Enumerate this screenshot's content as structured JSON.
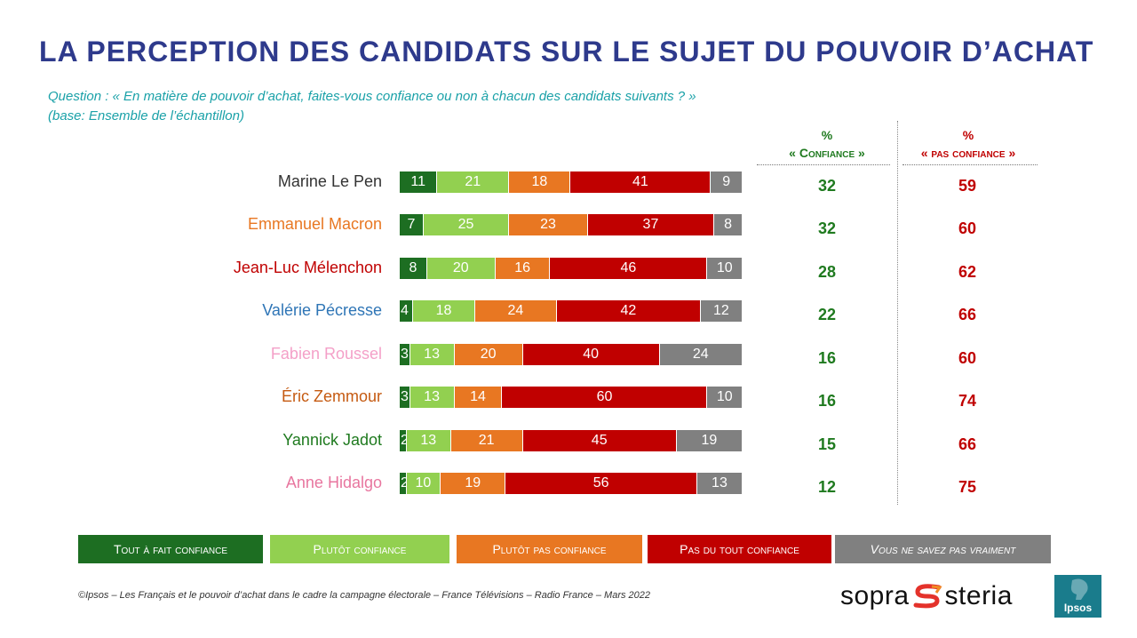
{
  "title": "LA PERCEPTION DES CANDIDATS SUR LE SUJET DU POUVOIR D’ACHAT",
  "question_line1": "Question : « En matière de pouvoir d’achat, faites-vous confiance ou non à chacun des candidats suivants ? »",
  "question_line2": "(base: Ensemble de l’échantillon)",
  "columns": {
    "confiance_pct": "%",
    "confiance_label": "« Confiance »",
    "pas_confiance_pct": "%",
    "pas_confiance_label": "« pas confiance »"
  },
  "colors": {
    "tout_a_fait": "#1d6e22",
    "plutot": "#92d050",
    "plutot_pas": "#e87722",
    "pas_du_tout": "#c00000",
    "ne_sait_pas": "#808080",
    "title": "#2e3a8c",
    "question": "#1aa1a8"
  },
  "chart_data": {
    "type": "bar",
    "orientation": "horizontal",
    "stacked": true,
    "unit": "%",
    "categories": [
      "Marine Le Pen",
      "Emmanuel Macron",
      "Jean-Luc Mélenchon",
      "Valérie Pécresse",
      "Fabien Roussel",
      "Éric Zemmour",
      "Yannick Jadot",
      "Anne Hidalgo"
    ],
    "category_colors": [
      "#333333",
      "#e87722",
      "#c00000",
      "#2e75b6",
      "#f4a0c8",
      "#c55a11",
      "#1f7a1f",
      "#e8769f"
    ],
    "series": [
      {
        "name": "Tout à fait confiance",
        "color": "#1d6e22",
        "values": [
          11,
          7,
          8,
          4,
          3,
          3,
          2,
          2
        ]
      },
      {
        "name": "Plutôt confiance",
        "color": "#92d050",
        "values": [
          21,
          25,
          20,
          18,
          13,
          13,
          13,
          10
        ]
      },
      {
        "name": "Plutôt pas confiance",
        "color": "#e87722",
        "values": [
          18,
          23,
          16,
          24,
          20,
          14,
          21,
          19
        ]
      },
      {
        "name": "Pas du tout confiance",
        "color": "#c00000",
        "values": [
          41,
          37,
          46,
          42,
          40,
          60,
          45,
          56
        ]
      },
      {
        "name": "Vous ne savez pas vraiment",
        "color": "#808080",
        "values": [
          9,
          8,
          10,
          12,
          24,
          10,
          19,
          13
        ]
      }
    ],
    "confiance": [
      32,
      32,
      28,
      22,
      16,
      16,
      15,
      12
    ],
    "pas_confiance": [
      59,
      60,
      62,
      66,
      60,
      74,
      66,
      75
    ]
  },
  "legend": [
    {
      "label": "Tout à fait confiance",
      "color": "#1d6e22"
    },
    {
      "label": "Plutôt confiance",
      "color": "#92d050"
    },
    {
      "label": "Plutôt pas confiance",
      "color": "#e87722"
    },
    {
      "label": "Pas du tout confiance",
      "color": "#c00000"
    },
    {
      "label": "Vous ne savez pas vraiment",
      "color": "#808080"
    }
  ],
  "footer": "©Ipsos – Les Français et le pouvoir d’achat dans le cadre la campagne électorale  – France Télévisions – Radio France – Mars 2022",
  "logos": {
    "sopra": "sopra",
    "steria": "steria",
    "ipsos": "Ipsos"
  }
}
